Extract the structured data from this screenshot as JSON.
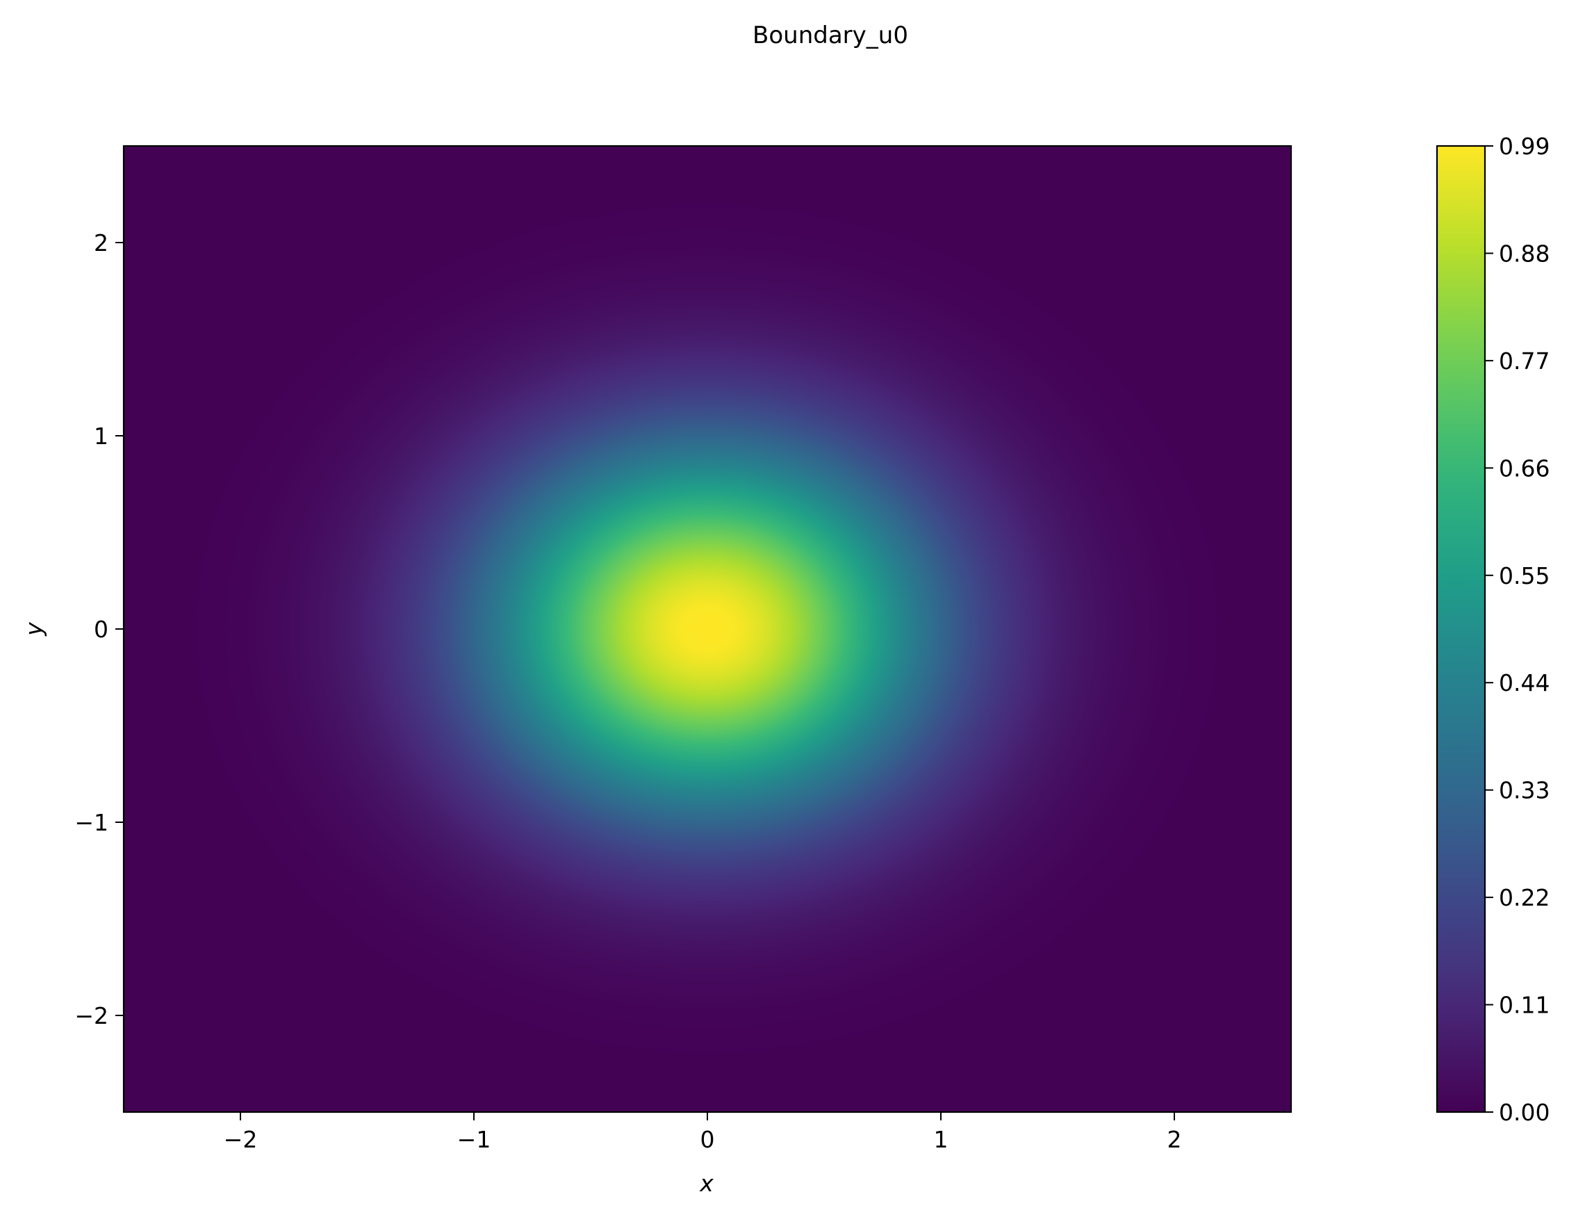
{
  "chart_data": {
    "type": "heatmap",
    "title": "Boundary_u0",
    "xlabel": "x",
    "ylabel": "y",
    "xlim": [
      -2.5,
      2.5
    ],
    "ylim": [
      -2.5,
      2.5
    ],
    "xticks": [
      -2,
      -1,
      0,
      1,
      2
    ],
    "yticks": [
      -2,
      -1,
      0,
      1,
      2
    ],
    "xtick_labels": [
      "−2",
      "−1",
      "0",
      "1",
      "2"
    ],
    "ytick_labels": [
      "−2",
      "−1",
      "0",
      "1",
      "2"
    ],
    "field": {
      "center": [
        0,
        0
      ],
      "peak_value": 1.0,
      "sigma": 0.667
    },
    "colorbar": {
      "colormap": "viridis",
      "range": [
        0.0,
        0.99
      ],
      "ticks": [
        0.0,
        0.11,
        0.22,
        0.33,
        0.44,
        0.55,
        0.66,
        0.77,
        0.88,
        0.99
      ],
      "tick_labels": [
        "0.00",
        "0.11",
        "0.22",
        "0.33",
        "0.44",
        "0.55",
        "0.66",
        "0.77",
        "0.88",
        "0.99"
      ]
    },
    "grid": false,
    "colors": [
      "#440154",
      "#482878",
      "#3e4989",
      "#31688e",
      "#26828e",
      "#1f9e89",
      "#35b779",
      "#6ece58",
      "#b5de2b",
      "#fde725"
    ]
  }
}
